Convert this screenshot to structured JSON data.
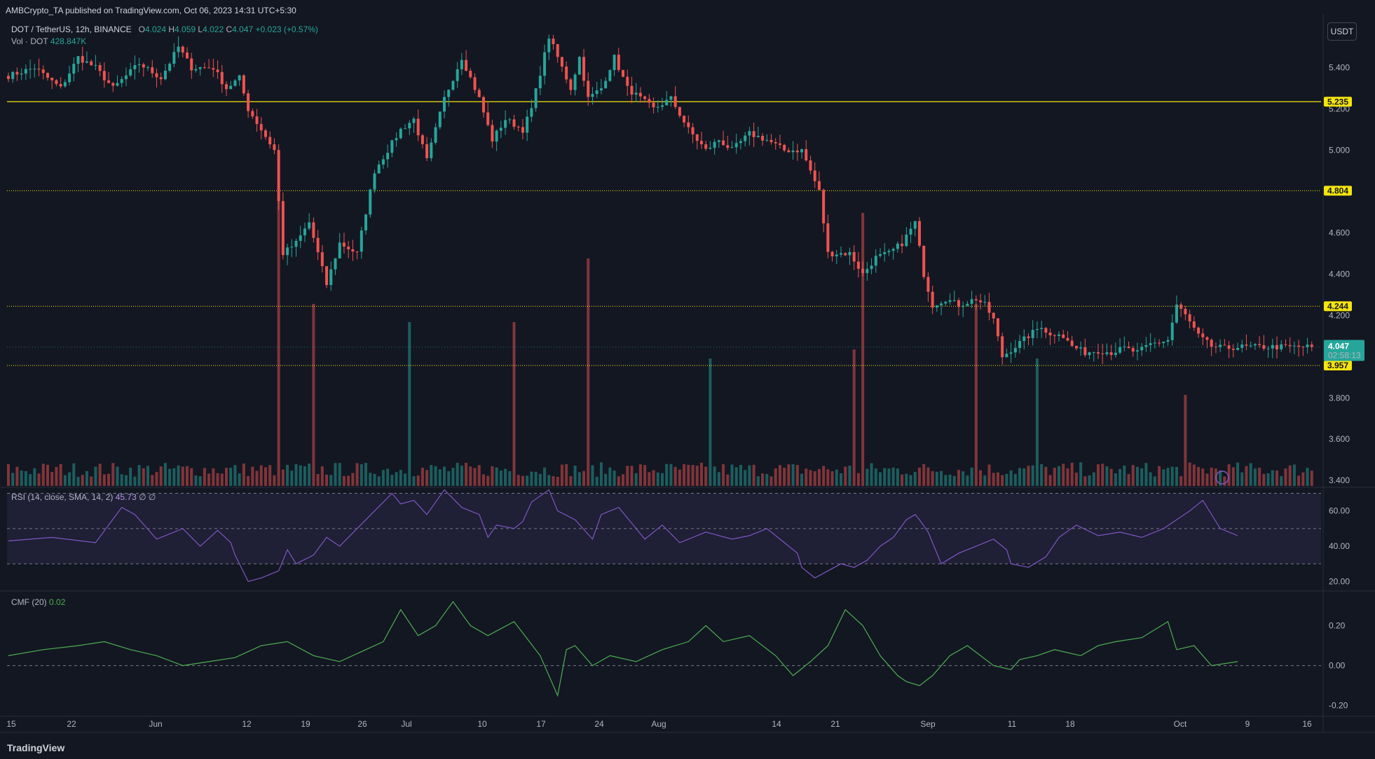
{
  "header": {
    "publisher": "AMBCrypto_TA published on TradingView.com, Oct 06, 2023 14:31 UTC+5:30"
  },
  "legend": {
    "symbol": "DOT / TetherUS, 12h, BINANCE",
    "o_label": "O",
    "o": "4.024",
    "h_label": "H",
    "h": "4.059",
    "l_label": "L",
    "l": "4.022",
    "c_label": "C",
    "c": "4.047",
    "change": "+0.023 (+0.57%)",
    "vol_label": "Vol · DOT",
    "vol": "428.847K"
  },
  "rsi_legend": {
    "label": "RSI (14, close, SMA, 14, 2)",
    "value": "45.73",
    "extra": "∅  ∅"
  },
  "cmf_legend": {
    "label": "CMF (20)",
    "value": "0.02"
  },
  "currency_button": "USDT",
  "footer": {
    "brand": "TradingView"
  },
  "colors": {
    "background": "#131722",
    "up": "#26a69a",
    "down": "#ef5350",
    "level": "#f5e50b",
    "rsi": "#7e57c2",
    "cmf": "#4caf50",
    "last_price": "#26a69a"
  },
  "chart_data": [
    {
      "type": "candlestick",
      "title": "DOT / TetherUS, 12h, BINANCE",
      "ylim": [
        3.37,
        5.66
      ],
      "y_ticks": [
        "5.400",
        "5.200",
        "5.000",
        "4.600",
        "4.400",
        "4.200",
        "3.800",
        "3.600",
        "3.400"
      ],
      "x_ticks": [
        "15",
        "22",
        "Jun",
        "12",
        "19",
        "26",
        "Jul",
        "10",
        "17",
        "24",
        "Aug",
        "14",
        "21",
        "Sep",
        "11",
        "18",
        "Oct",
        "9",
        "16"
      ],
      "levels": [
        {
          "value": 5.235,
          "label": "5.235",
          "style": "solid"
        },
        {
          "value": 4.804,
          "label": "4.804",
          "style": "dotted"
        },
        {
          "value": 4.244,
          "label": "4.244",
          "style": "dotted"
        },
        {
          "value": 3.957,
          "label": "3.957",
          "style": "dotted"
        }
      ],
      "last_price": {
        "value": 4.047,
        "label": "4.047",
        "countdown": "02:58:13"
      },
      "close_path": [
        [
          0,
          5.36
        ],
        [
          6,
          5.4
        ],
        [
          12,
          5.3
        ],
        [
          16,
          5.45
        ],
        [
          20,
          5.4
        ],
        [
          24,
          5.3
        ],
        [
          30,
          5.42
        ],
        [
          35,
          5.35
        ],
        [
          39,
          5.5
        ],
        [
          42,
          5.4
        ],
        [
          47,
          5.4
        ],
        [
          50,
          5.3
        ],
        [
          53,
          5.35
        ],
        [
          55,
          5.2
        ],
        [
          58,
          5.1
        ],
        [
          61,
          5.0
        ],
        [
          63,
          4.5
        ],
        [
          66,
          4.55
        ],
        [
          69,
          4.65
        ],
        [
          73,
          4.35
        ],
        [
          76,
          4.55
        ],
        [
          80,
          4.5
        ],
        [
          84,
          4.9
        ],
        [
          87,
          5.0
        ],
        [
          90,
          5.1
        ],
        [
          93,
          5.15
        ],
        [
          96,
          4.95
        ],
        [
          100,
          5.25
        ],
        [
          104,
          5.45
        ],
        [
          108,
          5.25
        ],
        [
          111,
          5.05
        ],
        [
          114,
          5.15
        ],
        [
          118,
          5.1
        ],
        [
          120,
          5.2
        ],
        [
          124,
          5.55
        ],
        [
          127,
          5.4
        ],
        [
          129,
          5.3
        ],
        [
          131,
          5.45
        ],
        [
          133,
          5.25
        ],
        [
          136,
          5.3
        ],
        [
          139,
          5.45
        ],
        [
          142,
          5.3
        ],
        [
          145,
          5.25
        ],
        [
          148,
          5.2
        ],
        [
          152,
          5.25
        ],
        [
          156,
          5.1
        ],
        [
          160,
          5.0
        ],
        [
          163,
          5.05
        ],
        [
          166,
          5.0
        ],
        [
          170,
          5.08
        ],
        [
          174,
          5.05
        ],
        [
          178,
          5.0
        ],
        [
          182,
          5.0
        ],
        [
          186,
          4.8
        ],
        [
          188,
          4.5
        ],
        [
          190,
          4.5
        ],
        [
          193,
          4.5
        ],
        [
          196,
          4.4
        ],
        [
          199,
          4.48
        ],
        [
          202,
          4.5
        ],
        [
          205,
          4.55
        ],
        [
          208,
          4.65
        ],
        [
          210,
          4.4
        ],
        [
          212,
          4.25
        ],
        [
          215,
          4.28
        ],
        [
          218,
          4.25
        ],
        [
          222,
          4.28
        ],
        [
          224,
          4.25
        ],
        [
          226,
          4.18
        ],
        [
          228,
          4.0
        ],
        [
          231,
          4.05
        ],
        [
          234,
          4.1
        ],
        [
          237,
          4.15
        ],
        [
          239,
          4.1
        ],
        [
          241,
          4.12
        ],
        [
          244,
          4.05
        ],
        [
          247,
          4.02
        ],
        [
          250,
          4.03
        ],
        [
          253,
          4.02
        ],
        [
          256,
          4.04
        ],
        [
          259,
          4.02
        ],
        [
          262,
          4.06
        ],
        [
          266,
          4.08
        ],
        [
          268,
          4.25
        ],
        [
          270,
          4.2
        ],
        [
          273,
          4.1
        ],
        [
          276,
          4.05
        ],
        [
          279,
          4.04
        ],
        [
          282,
          4.047
        ]
      ],
      "volume_spikes": [
        [
          62,
          3.2
        ],
        [
          70,
          2.0
        ],
        [
          92,
          1.8
        ],
        [
          116,
          1.8
        ],
        [
          133,
          2.5
        ],
        [
          161,
          1.4
        ],
        [
          194,
          1.5
        ],
        [
          196,
          3.0
        ],
        [
          222,
          2.0
        ],
        [
          236,
          1.4
        ],
        [
          270,
          1.0
        ]
      ]
    },
    {
      "type": "line",
      "title": "RSI (14, close, SMA, 14, 2)",
      "ylim": [
        15,
        73
      ],
      "y_ticks": [
        "60.00",
        "40.00",
        "20.00"
      ],
      "bands": [
        30,
        50,
        70
      ],
      "x": [
        0,
        10,
        20,
        26,
        29,
        34,
        40,
        44,
        48,
        51,
        52,
        55,
        58,
        62,
        64,
        66,
        70,
        73,
        76,
        80,
        84,
        88,
        90,
        93,
        96,
        100,
        104,
        108,
        110,
        112,
        116,
        118,
        120,
        124,
        126,
        130,
        134,
        136,
        140,
        146,
        150,
        154,
        160,
        166,
        170,
        174,
        178,
        181,
        182,
        185,
        188,
        191,
        194,
        197,
        200,
        203,
        206,
        208,
        209,
        211,
        214,
        218,
        222,
        226,
        229,
        230,
        234,
        238,
        241,
        245,
        250,
        255,
        260,
        265,
        268,
        271,
        274,
        278,
        282
      ],
      "values": [
        43,
        45,
        42,
        62,
        58,
        44,
        50,
        40,
        49,
        42,
        35,
        20,
        22,
        26,
        38,
        30,
        35,
        45,
        40,
        50,
        60,
        70,
        64,
        66,
        58,
        72,
        62,
        58,
        45,
        52,
        50,
        54,
        65,
        72,
        60,
        55,
        44,
        58,
        62,
        44,
        52,
        42,
        48,
        44,
        46,
        50,
        42,
        36,
        28,
        22,
        26,
        30,
        28,
        32,
        40,
        45,
        55,
        58,
        55,
        48,
        30,
        36,
        40,
        44,
        38,
        30,
        28,
        34,
        45,
        52,
        46,
        48,
        45,
        50,
        55,
        60,
        66,
        50,
        46
      ]
    },
    {
      "type": "line",
      "title": "CMF (20)",
      "ylim": [
        -0.25,
        0.37
      ],
      "y_ticks": [
        "0.20",
        "0.00",
        "-0.20"
      ],
      "x": [
        0,
        8,
        16,
        22,
        28,
        34,
        40,
        46,
        52,
        58,
        64,
        70,
        76,
        82,
        86,
        90,
        94,
        98,
        102,
        106,
        110,
        116,
        122,
        126,
        128,
        130,
        134,
        138,
        144,
        150,
        156,
        160,
        164,
        170,
        176,
        180,
        184,
        188,
        192,
        196,
        200,
        204,
        206,
        209,
        212,
        216,
        220,
        226,
        230,
        232,
        236,
        240,
        246,
        250,
        254,
        260,
        266,
        268,
        272,
        276,
        282
      ],
      "values": [
        0.05,
        0.08,
        0.1,
        0.12,
        0.08,
        0.05,
        0.0,
        0.02,
        0.04,
        0.1,
        0.12,
        0.05,
        0.02,
        0.08,
        0.12,
        0.28,
        0.15,
        0.2,
        0.32,
        0.2,
        0.15,
        0.22,
        0.05,
        -0.15,
        0.08,
        0.1,
        0.0,
        0.05,
        0.02,
        0.08,
        0.12,
        0.2,
        0.12,
        0.15,
        0.05,
        -0.05,
        0.02,
        0.1,
        0.28,
        0.2,
        0.05,
        -0.05,
        -0.08,
        -0.1,
        -0.05,
        0.05,
        0.1,
        0.0,
        -0.02,
        0.03,
        0.05,
        0.08,
        0.05,
        0.1,
        0.12,
        0.14,
        0.22,
        0.08,
        0.1,
        0.0,
        0.02
      ]
    }
  ]
}
